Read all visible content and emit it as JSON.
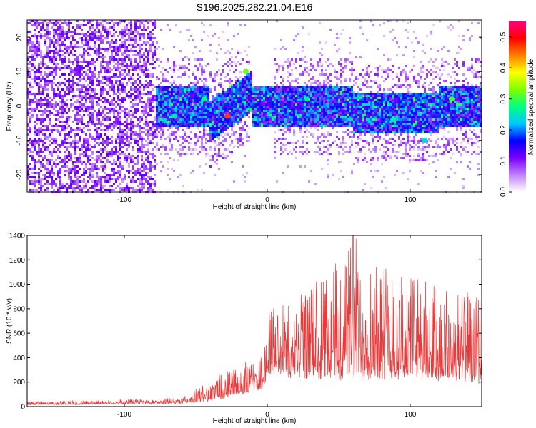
{
  "title": "S196.2025.282.21.04.E16",
  "chart_data": [
    {
      "type": "heatmap",
      "xlabel": "Height of straight line (km)",
      "ylabel": "Frequency (Hz)",
      "xlim": [
        -168,
        150
      ],
      "ylim": [
        -25,
        25
      ],
      "xticks": [
        -100,
        0,
        100
      ],
      "yticks": [
        -20,
        -10,
        0,
        10,
        20
      ],
      "colorbar": {
        "label": "Normalized spectral amplitude",
        "range": [
          0,
          0.55
        ],
        "ticks": [
          "0.0",
          "0.1",
          "0.2",
          "0.3",
          "0.4",
          "0.5"
        ],
        "colors": [
          "#ffffff",
          "#c080ff",
          "#7a00ff",
          "#0000ff",
          "#00c8ff",
          "#00ff80",
          "#80ff00",
          "#ffff00",
          "#ff8000",
          "#ff0000",
          "#ff0080"
        ]
      },
      "features": [
        {
          "x_range": [
            -168,
            -78
          ],
          "description_level": 0.08
        },
        {
          "x_range": [
            -78,
            150
          ],
          "band_center_hz": 0,
          "band_halfwidth_hz": 6,
          "level": 0.2
        },
        {
          "x": -15,
          "y": 10,
          "level": 0.3
        },
        {
          "x": -28,
          "y": -3,
          "level": 0.45
        }
      ]
    },
    {
      "type": "line",
      "xlabel": "Height of straight line (km)",
      "ylabel": "SNR (10 * v/v)",
      "xlim": [
        -168,
        150
      ],
      "ylim": [
        0,
        1400
      ],
      "xticks": [
        -100,
        0,
        100
      ],
      "yticks": [
        0,
        200,
        400,
        600,
        800,
        1000,
        1200,
        1400
      ],
      "series": [
        {
          "name": "SNR",
          "color": "#e83a3a",
          "envelope": [
            {
              "x": -168,
              "base": 15,
              "peak": 40
            },
            {
              "x": -60,
              "base": 25,
              "peak": 70
            },
            {
              "x": -35,
              "base": 60,
              "peak": 250
            },
            {
              "x": -3,
              "base": 150,
              "peak": 420
            },
            {
              "x": 0,
              "base": 300,
              "peak": 800
            },
            {
              "x": 30,
              "base": 250,
              "peak": 1000
            },
            {
              "x": 60,
              "base": 250,
              "peak": 1400
            },
            {
              "x": 100,
              "base": 250,
              "peak": 1100
            },
            {
              "x": 150,
              "base": 200,
              "peak": 900
            }
          ]
        }
      ]
    }
  ]
}
